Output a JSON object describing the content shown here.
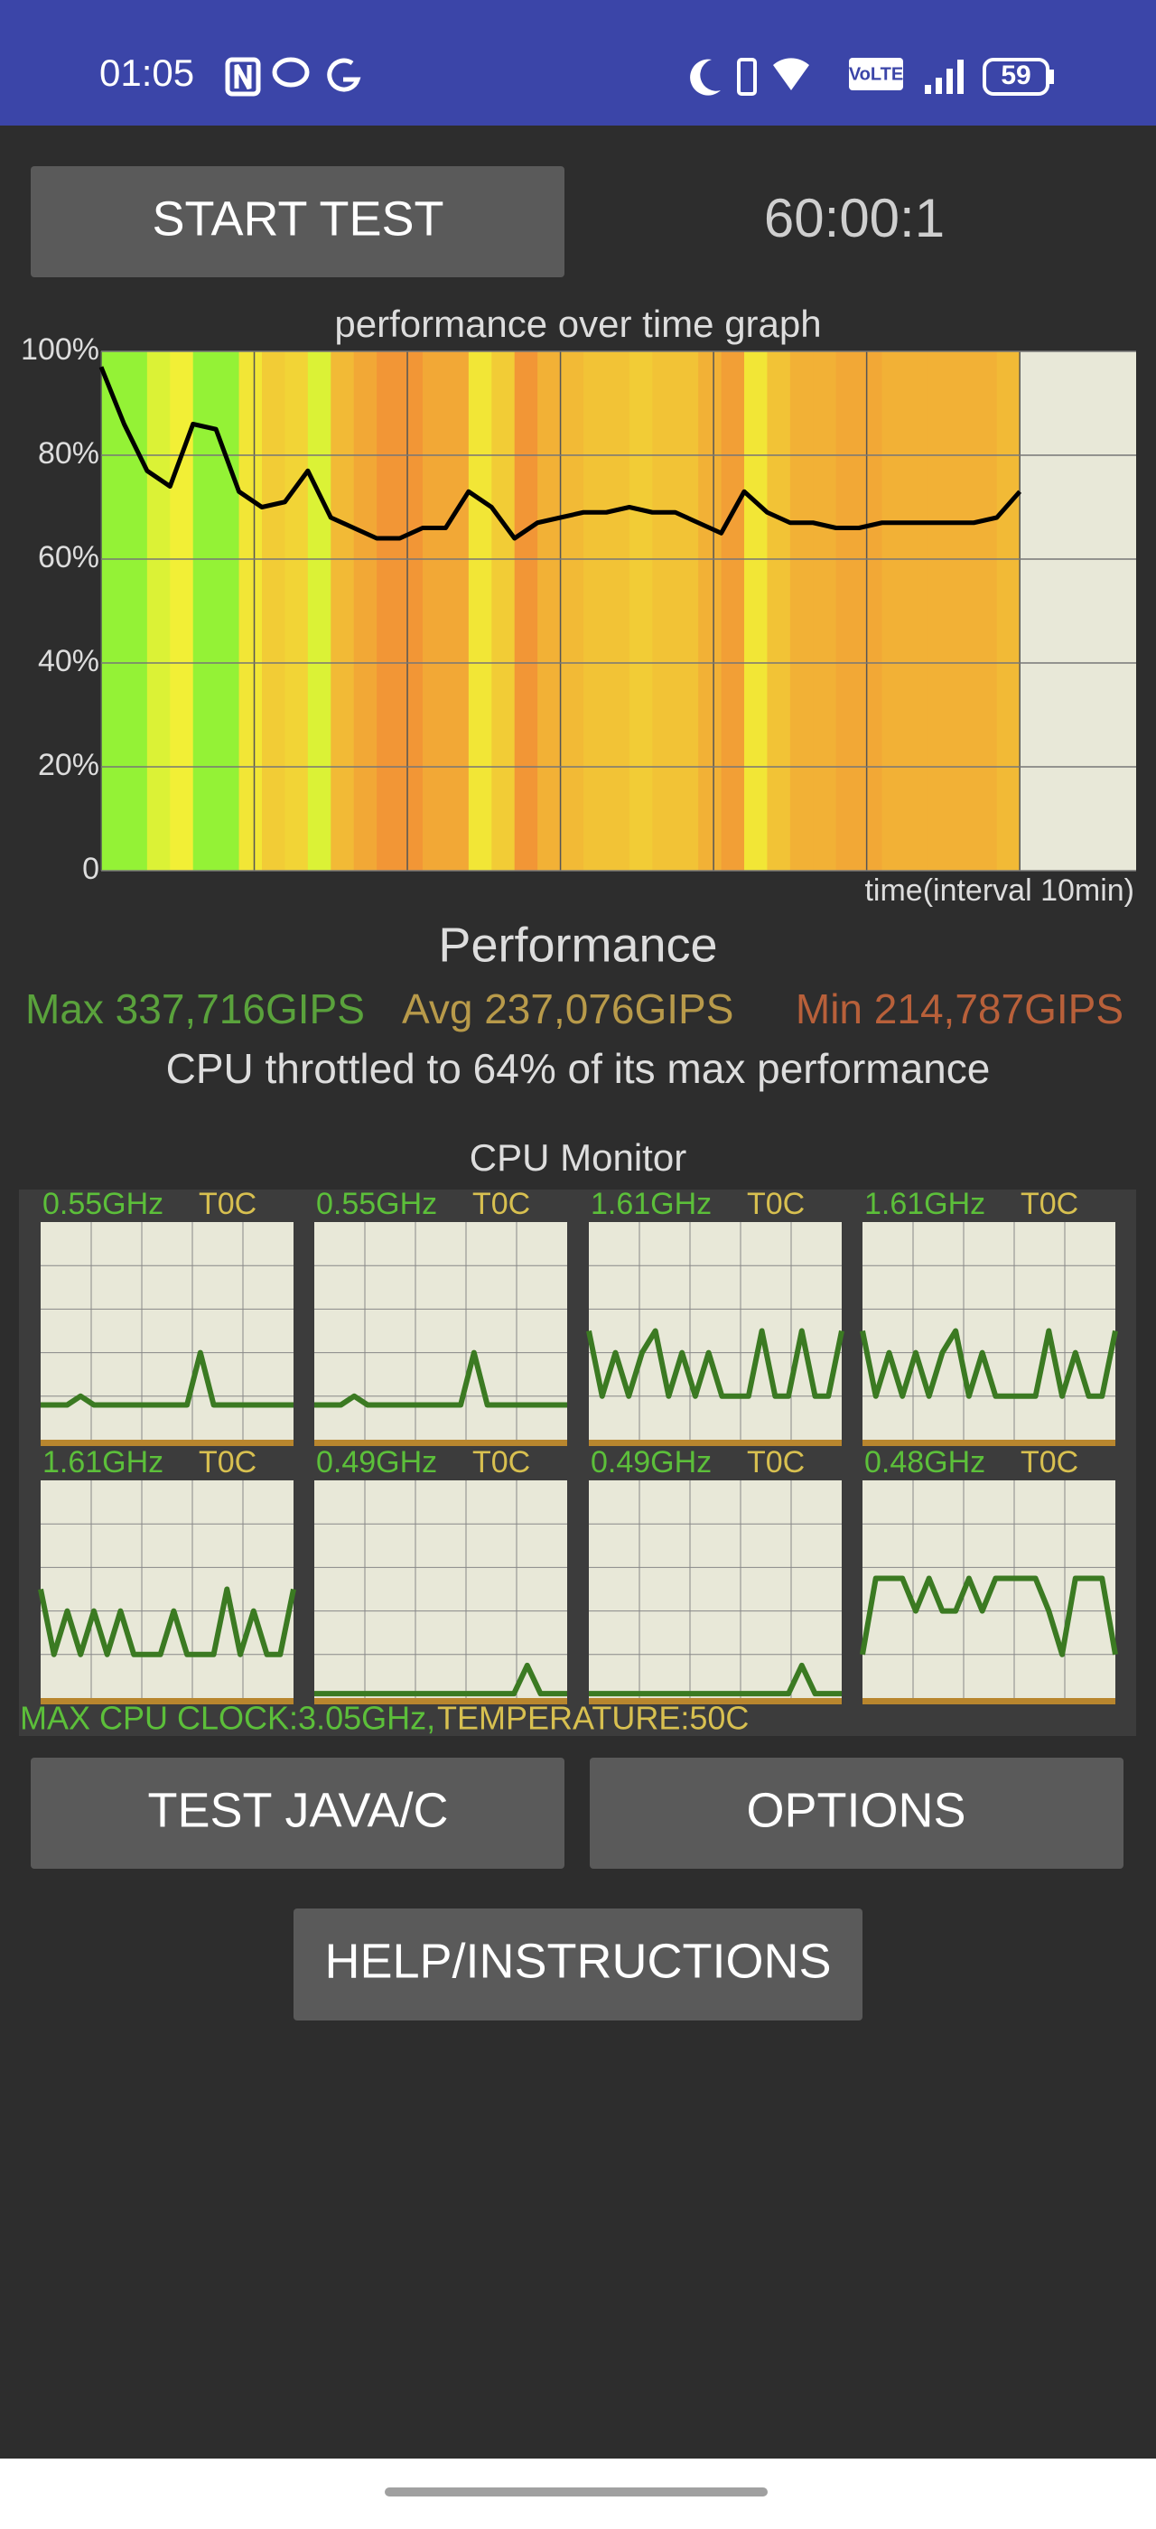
{
  "status_bar": {
    "time": "01:05",
    "network": "VoLTE",
    "battery": "59"
  },
  "start_button": "START TEST",
  "timer": "60:00:1",
  "chart_data": {
    "type": "line",
    "title": "performance over time graph",
    "x_label": "time(interval 10min)",
    "x": [
      0,
      1.5,
      3,
      4.5,
      6,
      7.5,
      9,
      10.5,
      12,
      13.5,
      15,
      16.5,
      18,
      19.5,
      21,
      22.5,
      24,
      25.5,
      27,
      28.5,
      30,
      31.5,
      33,
      34.5,
      36,
      37.5,
      39,
      40.5,
      42,
      43.5,
      45,
      46.5,
      48,
      49.5,
      51,
      52.5,
      54,
      55.5,
      57,
      58.5,
      60
    ],
    "values": [
      97,
      86,
      77,
      74,
      86,
      85,
      73,
      70,
      71,
      77,
      68,
      66,
      64,
      64,
      66,
      66,
      73,
      70,
      64,
      67,
      68,
      69,
      69,
      70,
      69,
      69,
      67,
      65,
      73,
      69,
      67,
      67,
      66,
      66,
      67,
      67,
      67,
      67,
      67,
      68,
      73
    ],
    "xlim": [
      0,
      67.6
    ],
    "xticks": [
      0,
      10,
      20,
      30,
      40,
      50,
      60
    ],
    "ylim": [
      0,
      100
    ],
    "yticks": [
      0,
      {
        "value": 20,
        "label": "20%"
      },
      {
        "value": 40,
        "label": "40%"
      },
      {
        "value": 60,
        "label": "60%"
      },
      {
        "value": 80,
        "label": "80%"
      },
      {
        "value": 100,
        "label": "100%"
      }
    ],
    "color": "#000000",
    "grid": true
  },
  "performance": {
    "heading": "Performance",
    "max": "Max 337,716GIPS",
    "avg": "Avg 237,076GIPS",
    "min": "Min 214,787GIPS",
    "throttle": "CPU throttled to 64% of its max performance"
  },
  "cpu_monitor": {
    "title": "CPU Monitor",
    "ylim": [
      0,
      100
    ],
    "cores": [
      {
        "freq": "0.55GHz",
        "temp": "T0C",
        "values": [
          16,
          16,
          16,
          20,
          16,
          16,
          16,
          16,
          16,
          16,
          16,
          16,
          40,
          16,
          16,
          16,
          16,
          16,
          16,
          16
        ]
      },
      {
        "freq": "0.55GHz",
        "temp": "T0C",
        "values": [
          16,
          16,
          16,
          20,
          16,
          16,
          16,
          16,
          16,
          16,
          16,
          16,
          40,
          16,
          16,
          16,
          16,
          16,
          16,
          16
        ]
      },
      {
        "freq": "1.61GHz",
        "temp": "T0C",
        "values": [
          50,
          20,
          40,
          20,
          40,
          50,
          20,
          40,
          20,
          40,
          20,
          20,
          20,
          50,
          20,
          20,
          50,
          20,
          20,
          50
        ]
      },
      {
        "freq": "1.61GHz",
        "temp": "T0C",
        "values": [
          50,
          20,
          40,
          20,
          40,
          20,
          40,
          50,
          20,
          40,
          20,
          20,
          20,
          20,
          50,
          20,
          40,
          20,
          20,
          50
        ]
      },
      {
        "freq": "1.61GHz",
        "temp": "T0C",
        "values": [
          50,
          20,
          40,
          20,
          40,
          20,
          40,
          20,
          20,
          20,
          40,
          20,
          20,
          20,
          50,
          20,
          40,
          20,
          20,
          50
        ]
      },
      {
        "freq": "0.49GHz",
        "temp": "T0C",
        "values": [
          2,
          2,
          2,
          2,
          2,
          2,
          2,
          2,
          2,
          2,
          2,
          2,
          2,
          2,
          2,
          2,
          15,
          2,
          2,
          2
        ]
      },
      {
        "freq": "0.49GHz",
        "temp": "T0C",
        "values": [
          2,
          2,
          2,
          2,
          2,
          2,
          2,
          2,
          2,
          2,
          2,
          2,
          2,
          2,
          2,
          2,
          15,
          2,
          2,
          2
        ]
      },
      {
        "freq": "0.48GHz",
        "temp": "T0C",
        "values": [
          20,
          55,
          55,
          55,
          40,
          55,
          40,
          40,
          55,
          40,
          55,
          55,
          55,
          55,
          40,
          20,
          55,
          55,
          55,
          20
        ]
      }
    ],
    "max_clock": "MAX CPU CLOCK:3.05GHz,",
    "temperature": "TEMPERATURE:50C"
  },
  "buttons": [
    "TEST JAVA/C",
    "OPTIONS",
    "HELP/INSTRUCTIONS"
  ]
}
